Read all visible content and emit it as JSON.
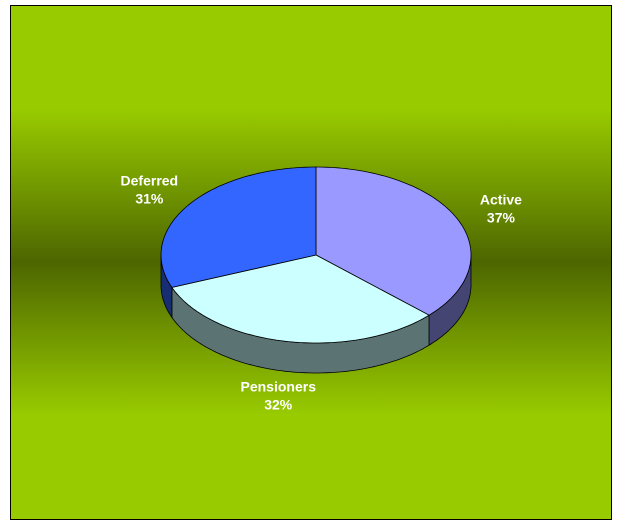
{
  "chart_data": {
    "type": "pie",
    "categories": [
      "Active",
      "Pensioners",
      "Deferred"
    ],
    "values": [
      37,
      32,
      31
    ],
    "value_labels": [
      "37%",
      "32%",
      "31%"
    ],
    "colors": [
      "#9999ff",
      "#ccffff",
      "#3366ff"
    ]
  }
}
